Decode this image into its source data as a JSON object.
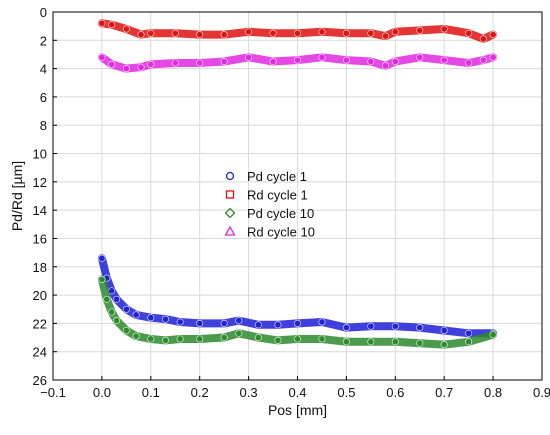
{
  "chart_data": {
    "type": "scatter",
    "xlabel": "Pos [mm]",
    "ylabel": "Pd/Rd [µm]",
    "xlim": [
      -0.1,
      0.9
    ],
    "ylim": [
      0,
      26
    ],
    "y_inverted": true,
    "grid": true,
    "legend_position": "center",
    "xticks": [
      -0.1,
      0.0,
      0.1,
      0.2,
      0.3,
      0.4,
      0.5,
      0.6,
      0.7,
      0.8,
      0.9
    ],
    "xtick_labels": [
      "−0.1",
      "0.0",
      "0.1",
      "0.2",
      "0.3",
      "0.4",
      "0.5",
      "0.6",
      "0.7",
      "0.8",
      "0.9"
    ],
    "yticks": [
      0,
      2,
      4,
      6,
      8,
      10,
      12,
      14,
      16,
      18,
      20,
      22,
      24,
      26
    ],
    "ytick_labels": [
      "0",
      "2",
      "4",
      "6",
      "8",
      "10",
      "12",
      "14",
      "16",
      "18",
      "20",
      "22",
      "24",
      "26"
    ],
    "series": [
      {
        "name": "Pd cycle 1",
        "marker": "circle",
        "color": "#1f1fd6",
        "x": [
          0.0,
          0.01,
          0.02,
          0.03,
          0.05,
          0.07,
          0.1,
          0.13,
          0.16,
          0.2,
          0.25,
          0.28,
          0.32,
          0.36,
          0.4,
          0.45,
          0.5,
          0.55,
          0.6,
          0.65,
          0.7,
          0.75,
          0.8
        ],
        "y": [
          17.4,
          18.8,
          19.7,
          20.3,
          21.0,
          21.4,
          21.6,
          21.7,
          21.9,
          22.0,
          22.0,
          21.8,
          22.1,
          22.1,
          22.0,
          21.9,
          22.3,
          22.2,
          22.2,
          22.3,
          22.5,
          22.7,
          22.7
        ]
      },
      {
        "name": "Rd cycle 1",
        "marker": "square",
        "color": "#e01010",
        "x": [
          0.0,
          0.02,
          0.05,
          0.08,
          0.1,
          0.15,
          0.2,
          0.25,
          0.3,
          0.35,
          0.4,
          0.45,
          0.5,
          0.55,
          0.58,
          0.6,
          0.65,
          0.7,
          0.75,
          0.78,
          0.8
        ],
        "y": [
          0.8,
          0.9,
          1.2,
          1.6,
          1.5,
          1.5,
          1.6,
          1.6,
          1.4,
          1.5,
          1.5,
          1.4,
          1.5,
          1.5,
          1.7,
          1.4,
          1.3,
          1.2,
          1.5,
          1.9,
          1.6
        ]
      },
      {
        "name": "Pd cycle 10",
        "marker": "diamond",
        "color": "#2d8a2d",
        "x": [
          0.0,
          0.01,
          0.02,
          0.03,
          0.05,
          0.07,
          0.1,
          0.13,
          0.16,
          0.2,
          0.25,
          0.28,
          0.32,
          0.36,
          0.4,
          0.45,
          0.5,
          0.55,
          0.6,
          0.65,
          0.7,
          0.75,
          0.8
        ],
        "y": [
          18.9,
          20.3,
          21.2,
          21.8,
          22.5,
          22.9,
          23.1,
          23.2,
          23.1,
          23.1,
          23.0,
          22.7,
          23.0,
          23.2,
          23.1,
          23.1,
          23.3,
          23.3,
          23.3,
          23.4,
          23.5,
          23.3,
          22.8
        ]
      },
      {
        "name": "Rd cycle 10",
        "marker": "triangle",
        "color": "#e028e0",
        "x": [
          0.0,
          0.02,
          0.05,
          0.08,
          0.1,
          0.15,
          0.2,
          0.25,
          0.3,
          0.35,
          0.4,
          0.45,
          0.5,
          0.55,
          0.58,
          0.6,
          0.65,
          0.7,
          0.75,
          0.78,
          0.8
        ],
        "y": [
          3.2,
          3.7,
          4.0,
          3.9,
          3.7,
          3.6,
          3.6,
          3.5,
          3.2,
          3.5,
          3.4,
          3.2,
          3.4,
          3.5,
          3.8,
          3.5,
          3.2,
          3.4,
          3.6,
          3.4,
          3.2
        ]
      }
    ]
  }
}
